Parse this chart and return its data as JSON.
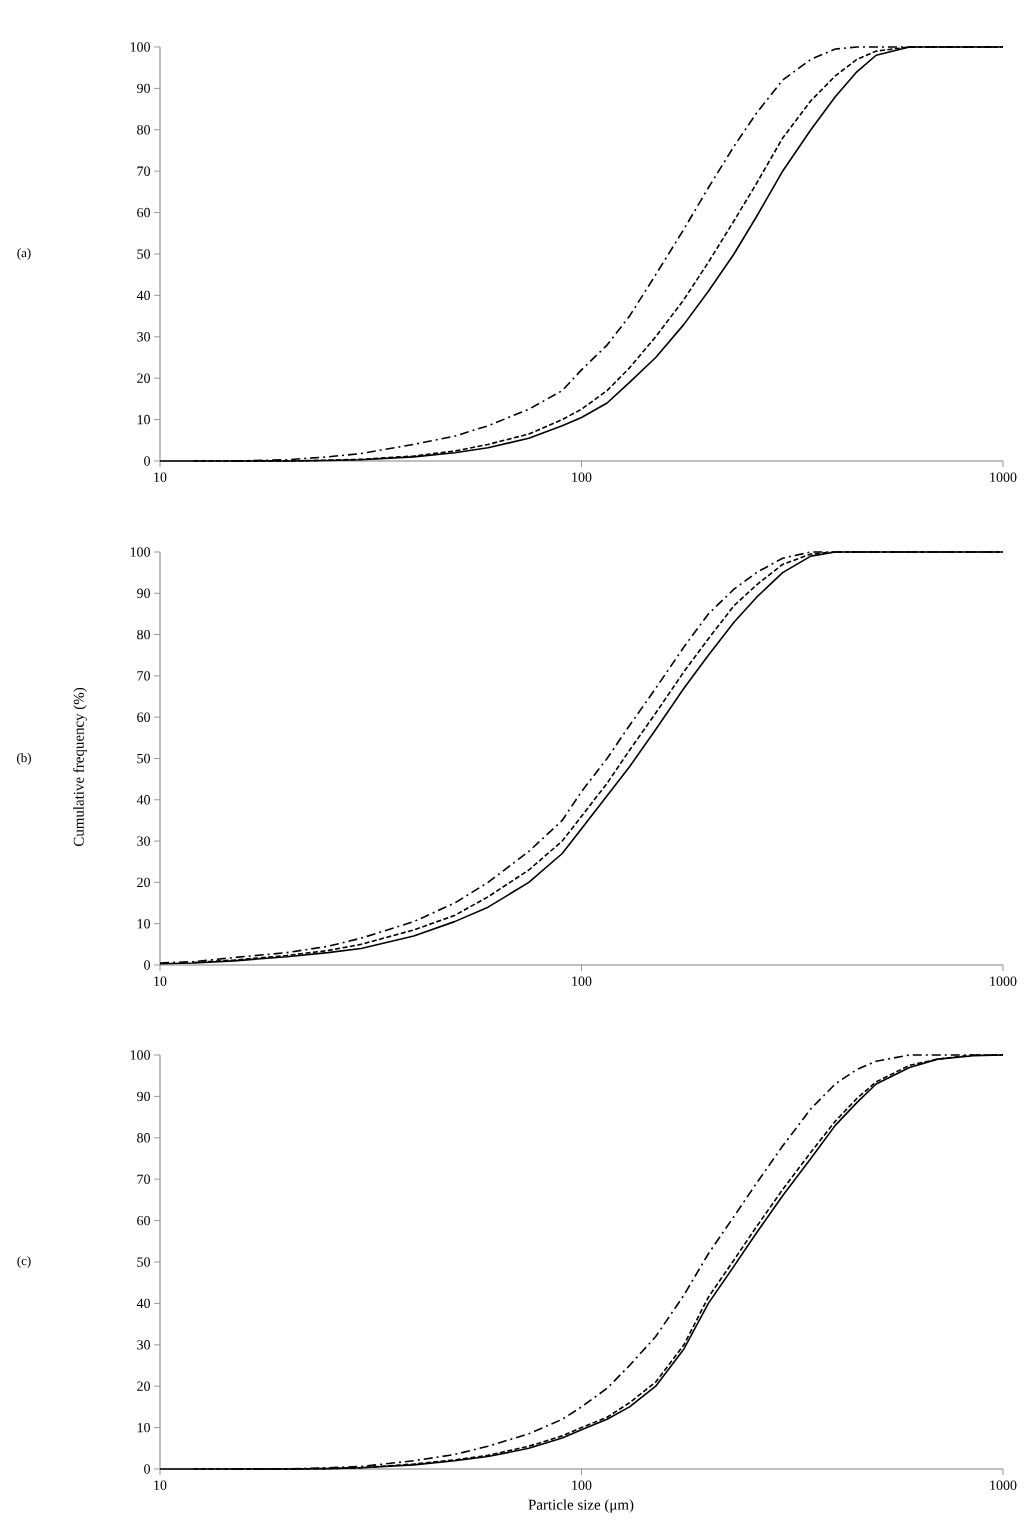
{
  "chart_data": [
    {
      "type": "line",
      "annotations": [
        "(a)"
      ],
      "log": "x",
      "xlim": [
        10,
        1000
      ],
      "ylim": [
        0,
        100
      ],
      "xticks": [
        10,
        100,
        1000
      ],
      "yticks": [
        0,
        10,
        20,
        30,
        40,
        50,
        60,
        70,
        80,
        90,
        100
      ],
      "x": [
        10,
        12,
        15,
        20,
        25,
        30,
        40,
        50,
        60,
        75,
        90,
        100,
        115,
        130,
        150,
        175,
        200,
        230,
        260,
        300,
        350,
        400,
        450,
        500,
        600,
        700,
        850,
        1000
      ],
      "series": [
        {
          "color": "#000000",
          "line_style": "solid",
          "values": [
            0,
            0,
            0,
            0,
            0.1,
            0.3,
            1,
            2,
            3.2,
            5.5,
            8.5,
            10.5,
            14,
            19,
            25,
            33,
            41,
            50,
            59,
            70,
            80,
            88,
            94,
            98,
            100,
            100,
            100,
            100
          ]
        },
        {
          "color": "#000000",
          "line_style": "dashed",
          "values": [
            null,
            0,
            0,
            0,
            0.2,
            0.4,
            1.2,
            2.4,
            4,
            6.5,
            10,
            12.5,
            17,
            22.5,
            30,
            39,
            48,
            58,
            67,
            78,
            87,
            93,
            97,
            99,
            100,
            100,
            100,
            100
          ]
        },
        {
          "color": "#000000",
          "line_style": "dashdot",
          "values": [
            null,
            null,
            0,
            0.3,
            1,
            1.8,
            4,
            6,
            8.5,
            12.5,
            17,
            22,
            28,
            35,
            45,
            56,
            66,
            76,
            84,
            92,
            97,
            99.5,
            100,
            100,
            100,
            100,
            100,
            100
          ]
        }
      ]
    },
    {
      "type": "line",
      "annotations": [
        "(b)"
      ],
      "ylabel": "Cumulative frequency (%)",
      "log": "x",
      "xlim": [
        10,
        1000
      ],
      "ylim": [
        0,
        100
      ],
      "xticks": [
        10,
        100,
        1000
      ],
      "yticks": [
        0,
        10,
        20,
        30,
        40,
        50,
        60,
        70,
        80,
        90,
        100
      ],
      "x": [
        10,
        12,
        15,
        20,
        25,
        30,
        40,
        50,
        60,
        75,
        90,
        100,
        115,
        130,
        150,
        175,
        200,
        230,
        260,
        300,
        350,
        400,
        450,
        500,
        600,
        700,
        850,
        1000
      ],
      "series": [
        {
          "color": "#000000",
          "line_style": "solid",
          "values": [
            0.3,
            0.5,
            1,
            2,
            3,
            4,
            7,
            10.5,
            14,
            20,
            27,
            33,
            41,
            48,
            57,
            67,
            75,
            83,
            89,
            95,
            99,
            100,
            100,
            100,
            100,
            100,
            100,
            100
          ]
        },
        {
          "color": "#000000",
          "line_style": "dashed",
          "values": [
            null,
            0.6,
            1.2,
            2.3,
            3.5,
            5,
            8.5,
            12,
            16.5,
            23,
            30,
            36,
            44,
            52,
            61,
            71,
            79,
            87,
            92,
            97,
            99.5,
            100,
            100,
            100,
            100,
            100,
            100,
            100
          ]
        },
        {
          "color": "#000000",
          "line_style": "dashdot",
          "values": [
            0.5,
            0.8,
            1.8,
            3,
            4.5,
            6.5,
            10.5,
            15,
            20,
            27.5,
            35,
            42,
            50,
            58,
            67,
            77,
            85,
            91,
            95,
            98.5,
            100,
            100,
            100,
            100,
            100,
            100,
            100,
            100
          ]
        }
      ]
    },
    {
      "type": "line",
      "annotations": [
        "(c)"
      ],
      "xlabel": "Particle size (μm)",
      "log": "x",
      "xlim": [
        10,
        1000
      ],
      "ylim": [
        0,
        100
      ],
      "xticks": [
        10,
        100,
        1000
      ],
      "yticks": [
        0,
        10,
        20,
        30,
        40,
        50,
        60,
        70,
        80,
        90,
        100
      ],
      "x": [
        10,
        12,
        15,
        20,
        25,
        30,
        40,
        50,
        60,
        75,
        90,
        100,
        115,
        130,
        150,
        175,
        200,
        230,
        260,
        300,
        350,
        400,
        450,
        500,
        600,
        700,
        850,
        1000
      ],
      "series": [
        {
          "color": "#000000",
          "line_style": "solid",
          "values": [
            0,
            0,
            0,
            0,
            0.1,
            0.3,
            1,
            2,
            3,
            5,
            7.5,
            9.5,
            12,
            15,
            20,
            29,
            40,
            49,
            57,
            66,
            75,
            83,
            88.5,
            93,
            97,
            99,
            99.8,
            100
          ]
        },
        {
          "color": "#000000",
          "line_style": "dashed",
          "values": [
            null,
            0,
            0,
            0,
            0.1,
            0.3,
            1.2,
            2.2,
            3.3,
            5.5,
            8,
            10,
            12.5,
            16,
            21,
            30,
            41.5,
            50.5,
            58.5,
            67.5,
            76.5,
            84,
            89.5,
            93.5,
            97.5,
            99,
            100,
            100
          ]
        },
        {
          "color": "#000000",
          "line_style": "dashdot",
          "values": [
            null,
            null,
            0,
            0,
            0.3,
            0.6,
            2,
            3.5,
            5.5,
            8.5,
            12,
            15,
            19.5,
            25,
            32,
            42,
            52,
            61,
            69,
            78,
            87,
            93,
            96.5,
            98.5,
            100,
            100,
            100,
            100
          ]
        }
      ]
    }
  ]
}
